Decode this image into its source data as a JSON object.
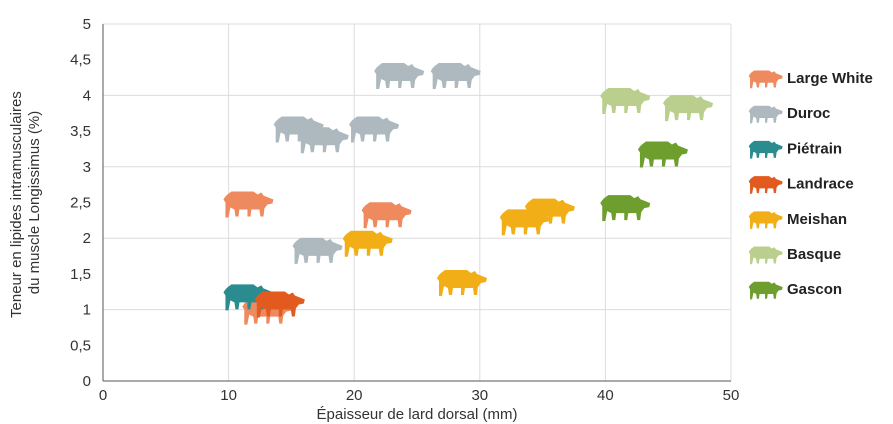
{
  "chart_data": {
    "type": "scatter",
    "title": "",
    "xlabel": "Épaisseur de lard dorsal (mm)",
    "ylabel_lines": [
      "Teneur en lipides intramusculaires",
      "du muscle Longissimus (%)"
    ],
    "xlim": [
      0,
      50
    ],
    "ylim": [
      0,
      5
    ],
    "x_ticks": [
      "0",
      "10",
      "20",
      "30",
      "40",
      "50"
    ],
    "y_ticks": [
      "0",
      "0,5",
      "1",
      "1,5",
      "2",
      "2,5",
      "3",
      "3,5",
      "4",
      "4,5",
      "5"
    ],
    "grid": true,
    "legend_position": "right",
    "marker": "pig-silhouette",
    "series": [
      {
        "name": "Large White",
        "color": "#EE8A5E",
        "points": [
          [
            11.5,
            2.5
          ],
          [
            22.5,
            2.35
          ],
          [
            13,
            1.0
          ]
        ]
      },
      {
        "name": "Duroc",
        "color": "#AEB9BF",
        "points": [
          [
            15.5,
            3.55
          ],
          [
            17.5,
            3.4
          ],
          [
            21.5,
            3.55
          ],
          [
            23.5,
            4.3
          ],
          [
            28,
            4.3
          ],
          [
            17,
            1.85
          ]
        ]
      },
      {
        "name": "Piétrain",
        "color": "#2A8C8E",
        "points": [
          [
            11.5,
            1.2
          ]
        ]
      },
      {
        "name": "Landrace",
        "color": "#E35A1E",
        "points": [
          [
            14,
            1.1
          ]
        ]
      },
      {
        "name": "Meishan",
        "color": "#F2AE16",
        "points": [
          [
            21,
            1.95
          ],
          [
            28.5,
            1.4
          ],
          [
            33.5,
            2.25
          ],
          [
            35.5,
            2.4
          ]
        ]
      },
      {
        "name": "Basque",
        "color": "#BACF8E",
        "points": [
          [
            41.5,
            3.95
          ],
          [
            46.5,
            3.85
          ]
        ]
      },
      {
        "name": "Gascon",
        "color": "#6E9E2E",
        "points": [
          [
            44.5,
            3.2
          ],
          [
            41.5,
            2.45
          ]
        ]
      }
    ]
  }
}
